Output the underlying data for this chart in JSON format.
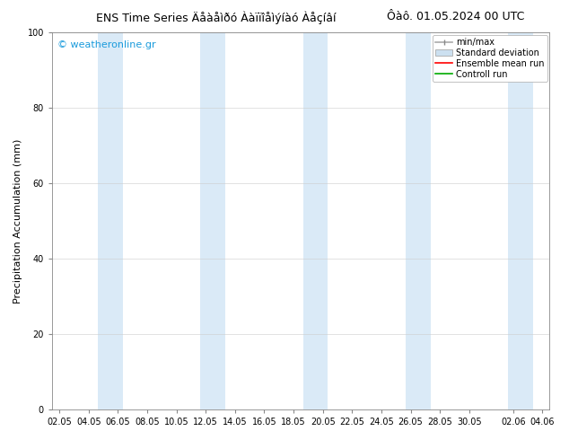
{
  "title_left": "ENS Time Series ÄåàåìÐó ÀàïïîåìÝíàó ÀåçÍâí",
  "title_right": "Ôàô. 01.05.2024 00 UTC",
  "ylabel": "Precipitation Accumulation (mm)",
  "ylim": [
    0,
    100
  ],
  "background_color": "#ffffff",
  "plot_bg_color": "#ffffff",
  "watermark": "© weatheronline.gr",
  "watermark_color": "#1a9bdc",
  "band_color": "#daeaf7",
  "xtick_labels": [
    "02.05",
    "04.05",
    "06.05",
    "08.05",
    "10.05",
    "12.05",
    "14.05",
    "16.05",
    "18.05",
    "20.05",
    "22.05",
    "24.05",
    "26.05",
    "28.05",
    "30.05",
    "02.06",
    "04.06"
  ],
  "ytick_positions": [
    0,
    20,
    40,
    60,
    80,
    100
  ],
  "ytick_labels": [
    "0",
    "20",
    "40",
    "60",
    "80",
    "100"
  ],
  "legend_items": [
    "min/max",
    "Standard deviation",
    "Ensemble mean run",
    "Controll run"
  ],
  "font_size_title": 9,
  "font_size_axis": 8,
  "font_size_tick": 7,
  "font_size_legend": 7,
  "font_size_watermark": 8
}
